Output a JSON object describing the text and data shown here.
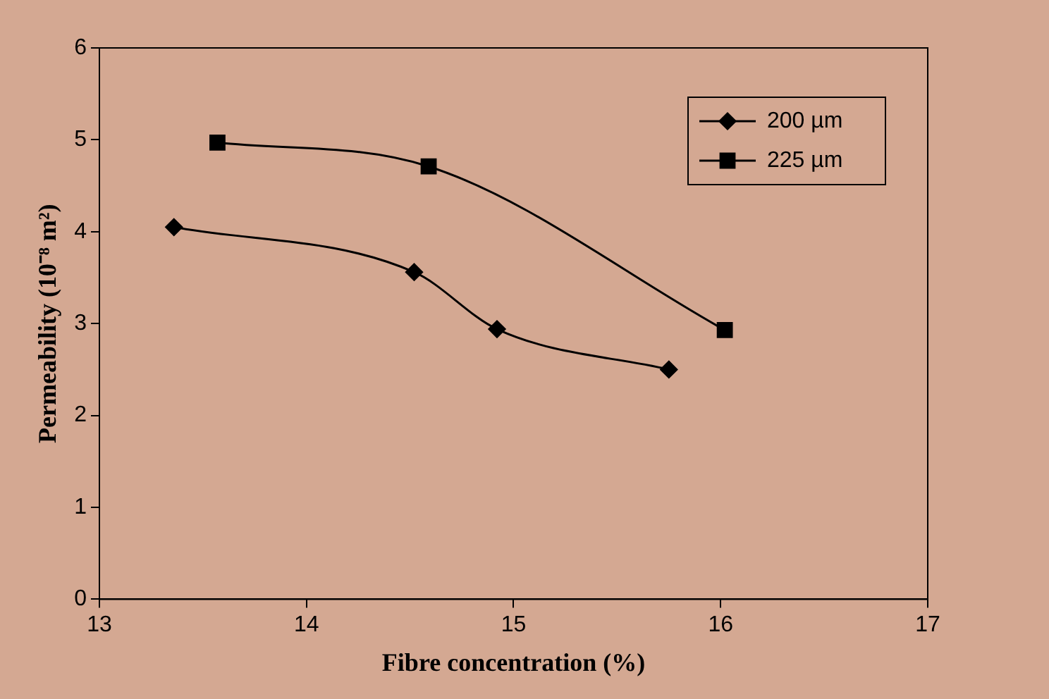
{
  "chart_data": {
    "type": "line",
    "xlabel": "Fibre concentration (%)",
    "ylabel": "Permeability (10⁻⁸ m²)",
    "xlim": [
      13,
      17
    ],
    "xticks": [
      13,
      14,
      15,
      16,
      17
    ],
    "ylim": [
      0,
      6
    ],
    "yticks": [
      0,
      1,
      2,
      3,
      4,
      5,
      6
    ],
    "grid": false,
    "legend": "top right",
    "line_style": "solid",
    "series": [
      {
        "name": "200 µm",
        "color": "#000000",
        "marker": "diamond",
        "x": [
          13.36,
          14.52,
          14.92,
          15.75
        ],
        "values": [
          4.05,
          3.56,
          2.94,
          2.5
        ]
      },
      {
        "name": "225 µm",
        "color": "#000000",
        "marker": "square",
        "x": [
          13.57,
          14.59,
          16.02
        ],
        "values": [
          4.97,
          4.71,
          2.93
        ]
      }
    ]
  }
}
